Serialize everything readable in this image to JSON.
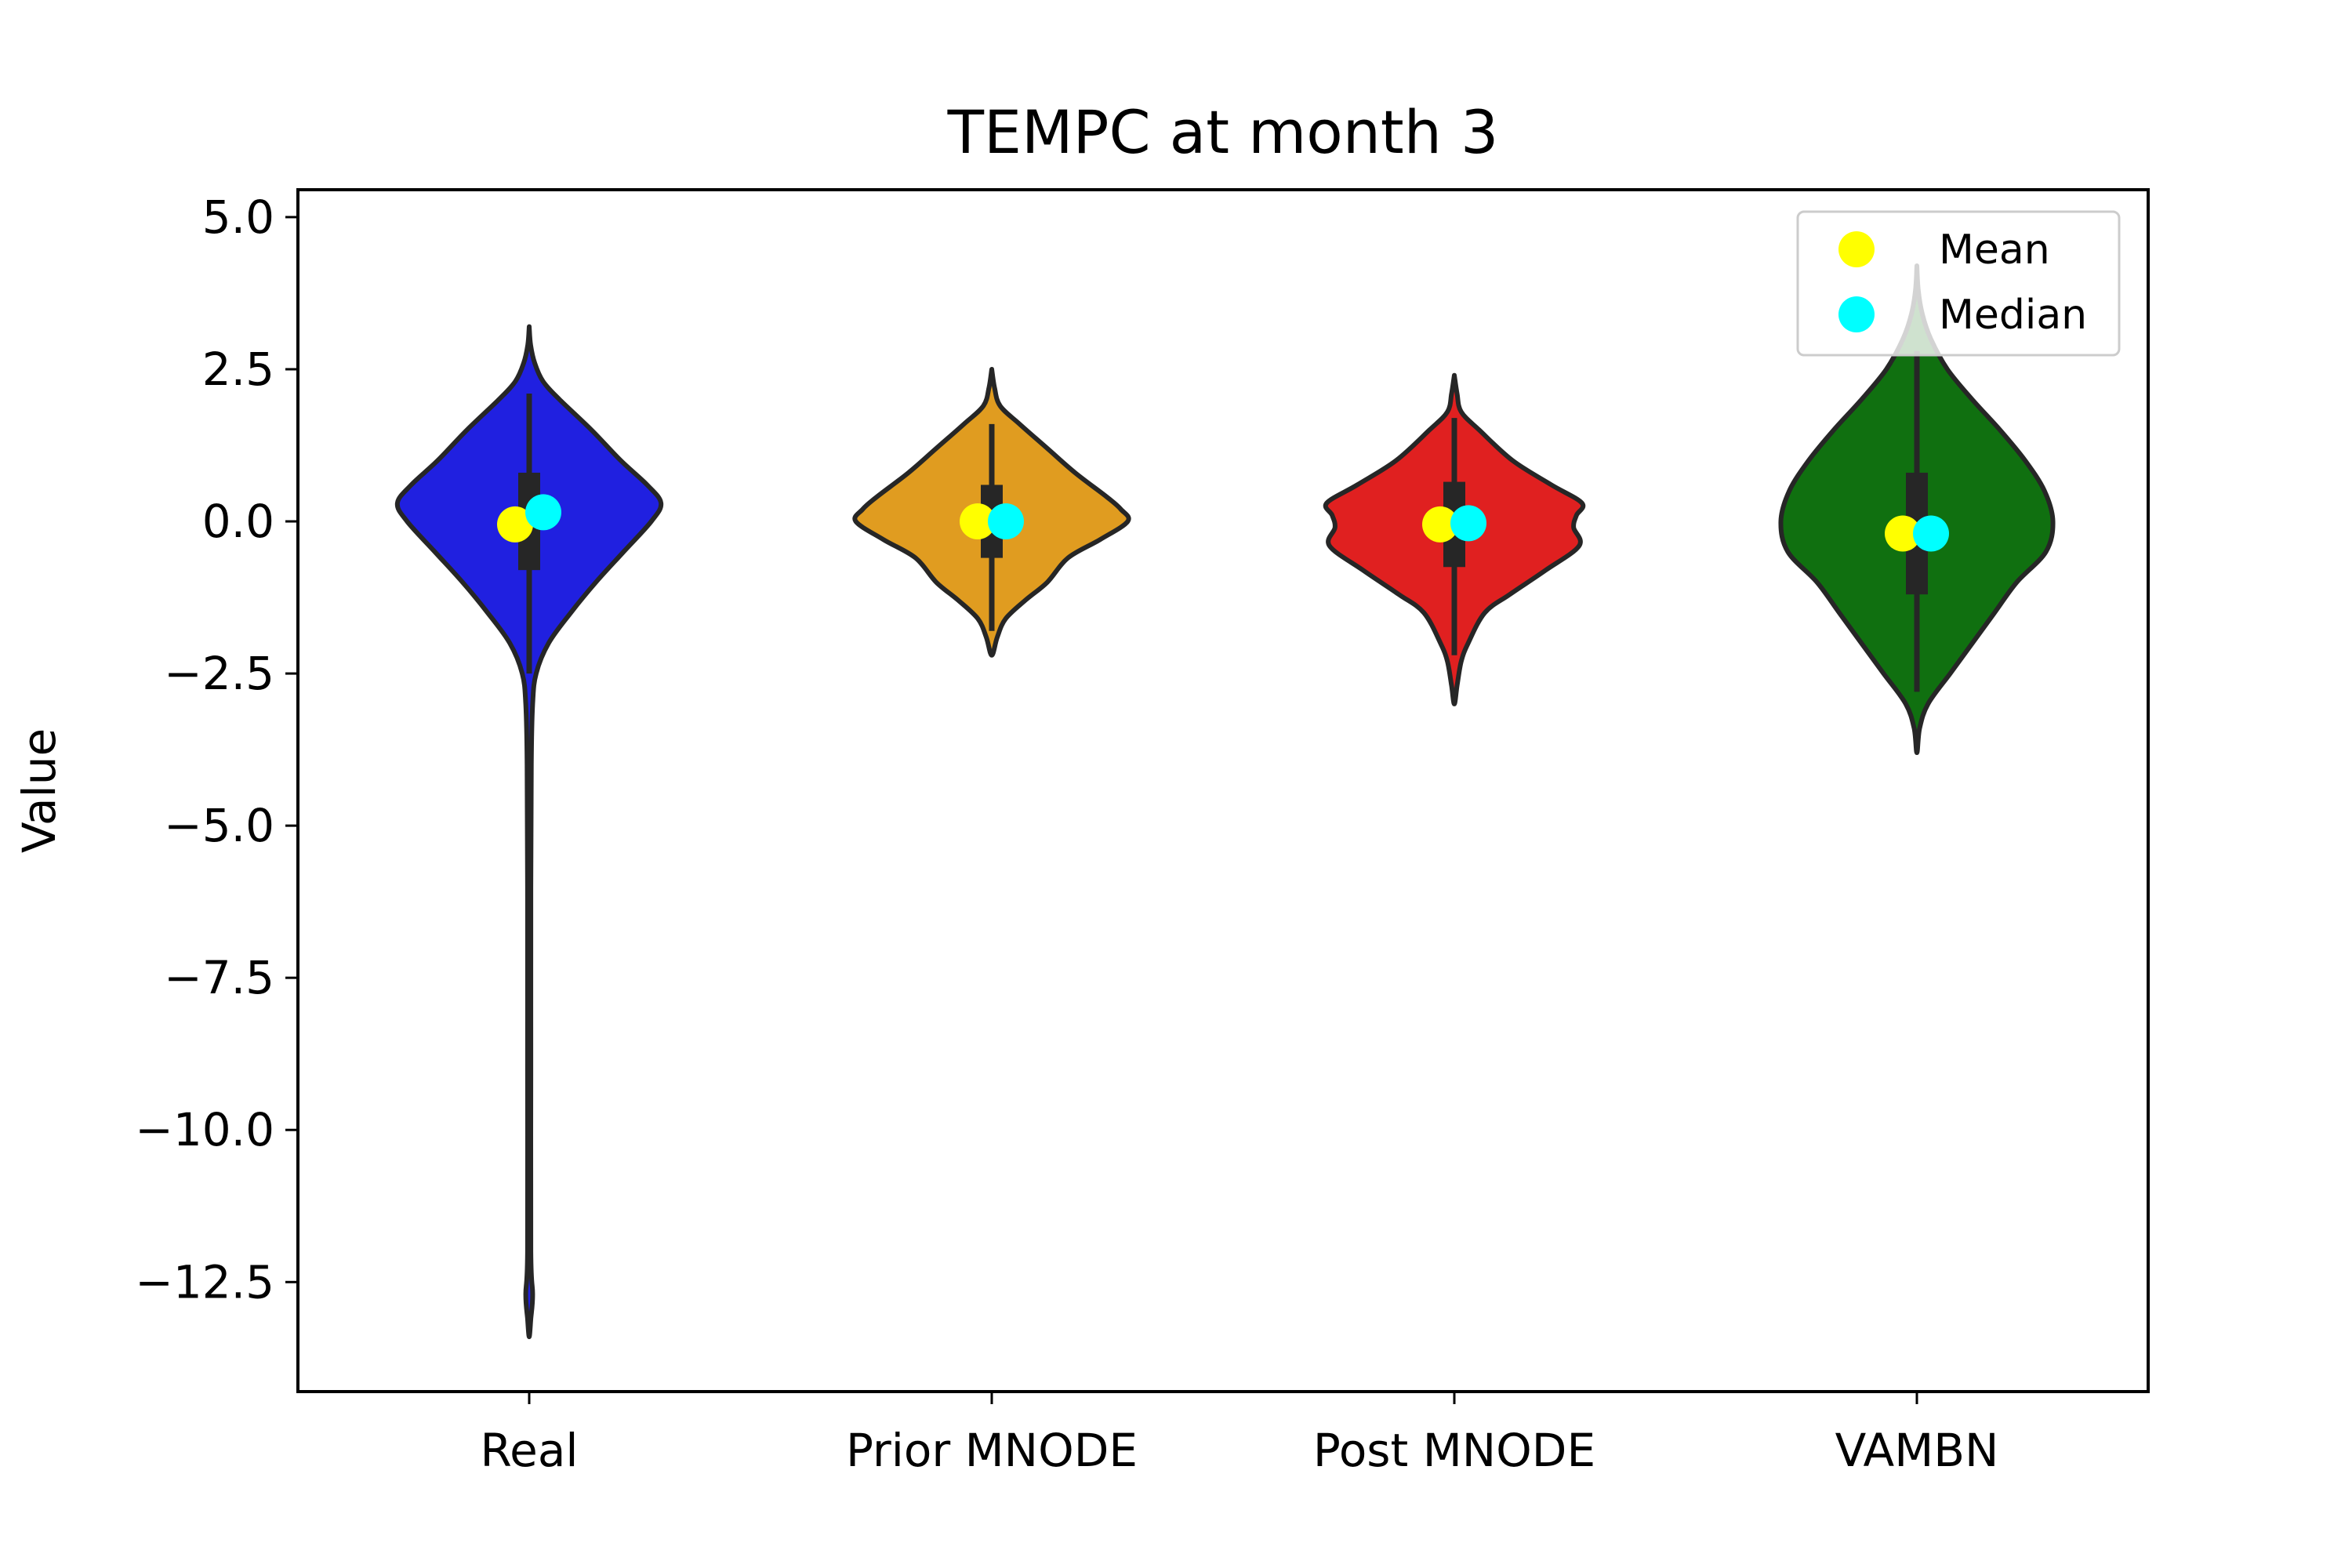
{
  "chart_data": {
    "type": "violin",
    "title": "TEMPC at month 3",
    "xlabel": "",
    "ylabel": "Value",
    "ylim": [
      -14.3,
      5.45
    ],
    "yticks": [
      5.0,
      2.5,
      0.0,
      -2.5,
      -5.0,
      -7.5,
      -10.0,
      -12.5
    ],
    "ytick_labels": [
      "5.0",
      "2.5",
      "0.0",
      "−2.5",
      "−5.0",
      "−7.5",
      "−10.0",
      "−12.5"
    ],
    "categories": [
      "Real",
      "Prior MNODE",
      "Post MNODE",
      "VAMBN"
    ],
    "grid": false,
    "legend": {
      "position": "top-right",
      "entries": [
        {
          "label": "Mean",
          "color": "#ffff00"
        },
        {
          "label": "Median",
          "color": "#00ffff"
        }
      ]
    },
    "series": [
      {
        "category": "Real",
        "color": "#2020e0",
        "mean": -0.05,
        "median": 0.15,
        "q1": -0.8,
        "q3": 0.8,
        "whisker_low": -2.5,
        "whisker_high": 2.1,
        "density": [
          [
            3.2,
            0.0
          ],
          [
            2.9,
            0.01
          ],
          [
            2.6,
            0.04
          ],
          [
            2.3,
            0.1
          ],
          [
            2.0,
            0.22
          ],
          [
            1.5,
            0.45
          ],
          [
            1.0,
            0.66
          ],
          [
            0.6,
            0.85
          ],
          [
            0.3,
            0.95
          ],
          [
            0.0,
            0.88
          ],
          [
            -0.5,
            0.68
          ],
          [
            -1.0,
            0.48
          ],
          [
            -1.5,
            0.3
          ],
          [
            -2.0,
            0.14
          ],
          [
            -2.5,
            0.05
          ],
          [
            -3.0,
            0.025
          ],
          [
            -4.0,
            0.015
          ],
          [
            -6.0,
            0.012
          ],
          [
            -9.0,
            0.012
          ],
          [
            -12.0,
            0.012
          ],
          [
            -12.7,
            0.025
          ],
          [
            -13.1,
            0.012
          ],
          [
            -13.4,
            0.0
          ]
        ]
      },
      {
        "category": "Prior MNODE",
        "color": "#e09c20",
        "mean": 0.0,
        "median": 0.0,
        "q1": -0.6,
        "q3": 0.6,
        "whisker_low": -1.8,
        "whisker_high": 1.6,
        "density": [
          [
            2.5,
            0.0
          ],
          [
            2.2,
            0.02
          ],
          [
            1.9,
            0.06
          ],
          [
            1.6,
            0.2
          ],
          [
            1.2,
            0.4
          ],
          [
            0.8,
            0.6
          ],
          [
            0.4,
            0.83
          ],
          [
            0.2,
            0.93
          ],
          [
            0.0,
            0.98
          ],
          [
            -0.3,
            0.78
          ],
          [
            -0.6,
            0.55
          ],
          [
            -1.0,
            0.4
          ],
          [
            -1.3,
            0.24
          ],
          [
            -1.6,
            0.1
          ],
          [
            -1.9,
            0.04
          ],
          [
            -2.2,
            0.0
          ]
        ]
      },
      {
        "category": "Post MNODE",
        "color": "#e02020",
        "mean": -0.05,
        "median": -0.03,
        "q1": -0.75,
        "q3": 0.65,
        "whisker_low": -2.2,
        "whisker_high": 1.7,
        "density": [
          [
            2.4,
            0.0
          ],
          [
            2.1,
            0.02
          ],
          [
            1.8,
            0.05
          ],
          [
            1.5,
            0.18
          ],
          [
            1.0,
            0.42
          ],
          [
            0.6,
            0.7
          ],
          [
            0.3,
            0.92
          ],
          [
            0.1,
            0.88
          ],
          [
            -0.1,
            0.86
          ],
          [
            -0.4,
            0.9
          ],
          [
            -0.8,
            0.66
          ],
          [
            -1.2,
            0.4
          ],
          [
            -1.5,
            0.22
          ],
          [
            -2.0,
            0.1
          ],
          [
            -2.3,
            0.05
          ],
          [
            -2.7,
            0.02
          ],
          [
            -3.0,
            0.0
          ]
        ]
      },
      {
        "category": "VAMBN",
        "color": "#107010",
        "mean": -0.2,
        "median": -0.2,
        "q1": -1.2,
        "q3": 0.8,
        "whisker_low": -2.8,
        "whisker_high": 2.8,
        "density": [
          [
            4.2,
            0.0
          ],
          [
            3.8,
            0.01
          ],
          [
            3.4,
            0.04
          ],
          [
            3.0,
            0.1
          ],
          [
            2.5,
            0.22
          ],
          [
            2.0,
            0.4
          ],
          [
            1.5,
            0.6
          ],
          [
            1.0,
            0.78
          ],
          [
            0.5,
            0.92
          ],
          [
            0.0,
            0.98
          ],
          [
            -0.5,
            0.93
          ],
          [
            -1.0,
            0.72
          ],
          [
            -1.5,
            0.56
          ],
          [
            -2.0,
            0.4
          ],
          [
            -2.5,
            0.24
          ],
          [
            -3.0,
            0.08
          ],
          [
            -3.4,
            0.02
          ],
          [
            -3.8,
            0.0
          ]
        ]
      }
    ]
  }
}
